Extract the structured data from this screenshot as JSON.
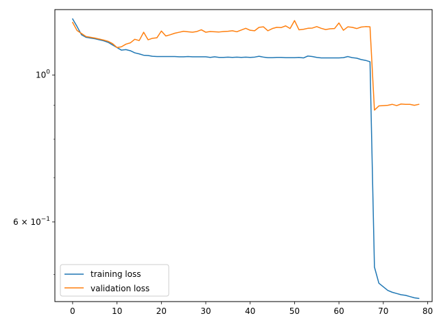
{
  "chart_data": {
    "type": "line",
    "title": "",
    "xlabel": "",
    "ylabel": "",
    "yscale": "log",
    "xlim": [
      -4,
      81
    ],
    "ylim": [
      0.455,
      1.255
    ],
    "grid": false,
    "legend_position": "lower-left",
    "x_ticks": [
      0,
      10,
      20,
      30,
      40,
      50,
      60,
      70,
      80
    ],
    "x_tick_labels": [
      "0",
      "10",
      "20",
      "30",
      "40",
      "50",
      "60",
      "70",
      "80"
    ],
    "y_ticks": [
      {
        "value": 1.0,
        "base": "10",
        "exp": "0",
        "coef": ""
      },
      {
        "value": 0.6,
        "base": "10",
        "exp": "−1",
        "coef": "6 × "
      }
    ],
    "series": [
      {
        "name": "training loss",
        "color": "#1f77b4",
        "x": [
          0,
          1,
          2,
          3,
          4,
          5,
          6,
          7,
          8,
          9,
          10,
          11,
          12,
          13,
          14,
          15,
          16,
          17,
          18,
          19,
          20,
          21,
          22,
          23,
          24,
          25,
          26,
          27,
          28,
          29,
          30,
          31,
          32,
          33,
          34,
          35,
          36,
          37,
          38,
          39,
          40,
          41,
          42,
          43,
          44,
          45,
          46,
          47,
          48,
          49,
          50,
          51,
          52,
          53,
          54,
          55,
          56,
          57,
          58,
          59,
          60,
          61,
          62,
          63,
          64,
          65,
          66,
          67,
          68,
          69,
          70,
          71,
          72,
          73,
          74,
          75,
          76,
          77,
          78
        ],
        "y": [
          1.215,
          1.183,
          1.15,
          1.14,
          1.137,
          1.134,
          1.13,
          1.126,
          1.12,
          1.11,
          1.1,
          1.09,
          1.092,
          1.088,
          1.08,
          1.076,
          1.071,
          1.07,
          1.067,
          1.066,
          1.066,
          1.066,
          1.066,
          1.066,
          1.065,
          1.065,
          1.066,
          1.065,
          1.065,
          1.065,
          1.065,
          1.063,
          1.065,
          1.063,
          1.063,
          1.064,
          1.063,
          1.064,
          1.063,
          1.064,
          1.063,
          1.064,
          1.067,
          1.064,
          1.062,
          1.062,
          1.063,
          1.063,
          1.062,
          1.062,
          1.062,
          1.063,
          1.061,
          1.068,
          1.066,
          1.063,
          1.061,
          1.061,
          1.061,
          1.061,
          1.061,
          1.062,
          1.066,
          1.062,
          1.06,
          1.055,
          1.052,
          1.047,
          0.513,
          0.485,
          0.479,
          0.473,
          0.47,
          0.468,
          0.466,
          0.465,
          0.463,
          0.461,
          0.46
        ]
      },
      {
        "name": "validation loss",
        "color": "#ff7f0e",
        "x": [
          0,
          1,
          2,
          3,
          4,
          5,
          6,
          7,
          8,
          9,
          10,
          11,
          12,
          13,
          14,
          15,
          16,
          17,
          18,
          19,
          20,
          21,
          22,
          23,
          24,
          25,
          26,
          27,
          28,
          29,
          30,
          31,
          32,
          33,
          34,
          35,
          36,
          37,
          38,
          39,
          40,
          41,
          42,
          43,
          44,
          45,
          46,
          47,
          48,
          49,
          50,
          51,
          52,
          53,
          54,
          55,
          56,
          57,
          58,
          59,
          60,
          61,
          62,
          63,
          64,
          65,
          66,
          67,
          68,
          69,
          70,
          71,
          72,
          73,
          74,
          75,
          76,
          77,
          78
        ],
        "y": [
          1.2,
          1.167,
          1.155,
          1.143,
          1.14,
          1.137,
          1.133,
          1.129,
          1.124,
          1.115,
          1.1,
          1.103,
          1.113,
          1.118,
          1.132,
          1.127,
          1.16,
          1.13,
          1.136,
          1.138,
          1.165,
          1.145,
          1.15,
          1.156,
          1.16,
          1.164,
          1.162,
          1.16,
          1.163,
          1.17,
          1.16,
          1.163,
          1.162,
          1.161,
          1.163,
          1.164,
          1.166,
          1.162,
          1.169,
          1.176,
          1.168,
          1.166,
          1.18,
          1.182,
          1.166,
          1.175,
          1.18,
          1.179,
          1.186,
          1.175,
          1.208,
          1.17,
          1.172,
          1.176,
          1.177,
          1.183,
          1.176,
          1.171,
          1.174,
          1.175,
          1.198,
          1.168,
          1.182,
          1.18,
          1.175,
          1.181,
          1.183,
          1.182,
          0.885,
          0.898,
          0.899,
          0.9,
          0.903,
          0.899,
          0.904,
          0.903,
          0.903,
          0.9,
          0.903
        ]
      }
    ]
  }
}
